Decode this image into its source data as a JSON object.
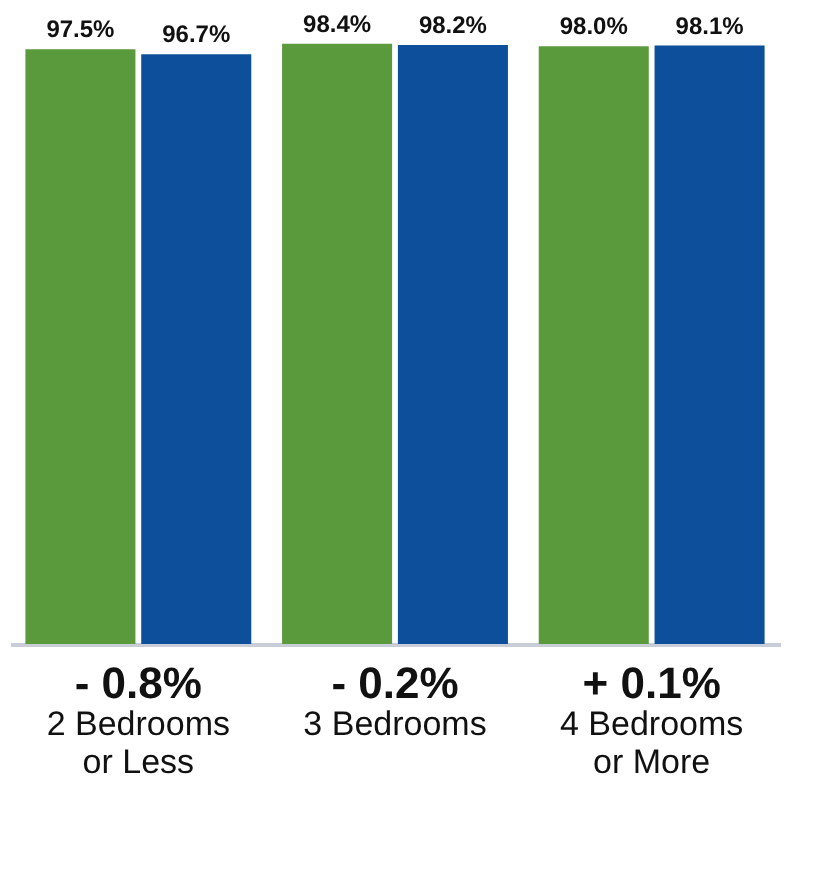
{
  "chart_data": {
    "type": "bar",
    "categories": [
      "2 Bedrooms or Less",
      "3 Bedrooms",
      "4 Bedrooms or More"
    ],
    "series": [
      {
        "color": "#5b9a3c",
        "values": [
          97.5,
          98.4,
          98.0
        ],
        "value_labels": [
          "97.5%",
          "98.4%",
          "98.0%"
        ]
      },
      {
        "color": "#0d4f9a",
        "values": [
          96.7,
          98.2,
          98.1
        ],
        "value_labels": [
          "96.7%",
          "98.2%",
          "98.1%"
        ]
      }
    ],
    "grid": false,
    "legend": false,
    "annotations": [
      "- 0.8%",
      "- 0.2%",
      "+ 0.1%"
    ]
  }
}
